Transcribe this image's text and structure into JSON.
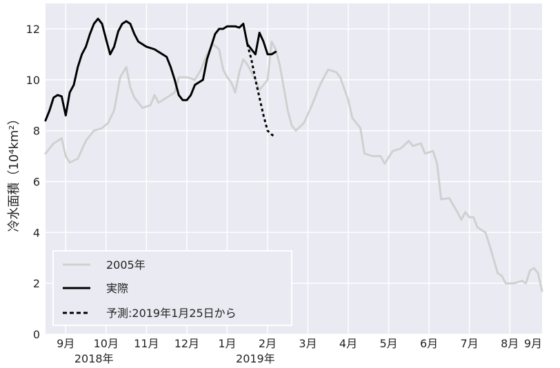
{
  "chart_data": {
    "type": "line",
    "ylabel": "冷水面積（10⁴km²）",
    "ylim": [
      0,
      13
    ],
    "xlim": [
      0,
      12.3
    ],
    "yticks": [
      0,
      2,
      4,
      6,
      8,
      10,
      12
    ],
    "grid": true,
    "legend_position": "bottom-left",
    "months": [
      {
        "label": "9月",
        "x": 0.5
      },
      {
        "label": "10月",
        "x": 1.5
      },
      {
        "label": "11月",
        "x": 2.5
      },
      {
        "label": "12月",
        "x": 3.5
      },
      {
        "label": "1月",
        "x": 4.5
      },
      {
        "label": "2月",
        "x": 5.5
      },
      {
        "label": "3月",
        "x": 6.5
      },
      {
        "label": "4月",
        "x": 7.5
      },
      {
        "label": "5月",
        "x": 8.5
      },
      {
        "label": "6月",
        "x": 9.5
      },
      {
        "label": "7月",
        "x": 10.5
      },
      {
        "label": "8月",
        "x": 11.5
      },
      {
        "label": "9月",
        "x": 12.3
      }
    ],
    "years": [
      {
        "label": "2018年",
        "x": 1.2
      },
      {
        "label": "2019年",
        "x": 5.2
      }
    ],
    "series": [
      {
        "name": "2005年",
        "color": "#d0d0d0",
        "dash": "solid",
        "points": [
          [
            0.0,
            7.1
          ],
          [
            0.2,
            7.5
          ],
          [
            0.4,
            7.7
          ],
          [
            0.5,
            7.0
          ],
          [
            0.6,
            6.75
          ],
          [
            0.8,
            6.9
          ],
          [
            1.0,
            7.6
          ],
          [
            1.2,
            8.0
          ],
          [
            1.4,
            8.1
          ],
          [
            1.55,
            8.3
          ],
          [
            1.7,
            8.8
          ],
          [
            1.85,
            10.1
          ],
          [
            2.0,
            10.5
          ],
          [
            2.1,
            9.7
          ],
          [
            2.2,
            9.3
          ],
          [
            2.4,
            8.9
          ],
          [
            2.6,
            9.0
          ],
          [
            2.7,
            9.4
          ],
          [
            2.8,
            9.1
          ],
          [
            2.9,
            9.2
          ],
          [
            3.0,
            9.3
          ],
          [
            3.2,
            9.5
          ],
          [
            3.3,
            10.1
          ],
          [
            3.5,
            10.1
          ],
          [
            3.7,
            10.0
          ],
          [
            3.85,
            10.4
          ],
          [
            4.0,
            11.0
          ],
          [
            4.15,
            11.4
          ],
          [
            4.3,
            11.2
          ],
          [
            4.4,
            10.4
          ],
          [
            4.5,
            10.1
          ],
          [
            4.6,
            9.9
          ],
          [
            4.7,
            9.5
          ],
          [
            4.8,
            10.3
          ],
          [
            4.9,
            10.8
          ],
          [
            5.0,
            10.6
          ],
          [
            5.2,
            10.0
          ],
          [
            5.3,
            9.6
          ],
          [
            5.5,
            10.0
          ],
          [
            5.6,
            11.5
          ],
          [
            5.7,
            11.2
          ],
          [
            5.8,
            10.6
          ],
          [
            5.9,
            9.7
          ],
          [
            6.0,
            8.8
          ],
          [
            6.1,
            8.2
          ],
          [
            6.2,
            8.0
          ],
          [
            6.4,
            8.3
          ],
          [
            6.6,
            9.0
          ],
          [
            6.8,
            9.8
          ],
          [
            7.0,
            10.4
          ],
          [
            7.2,
            10.3
          ],
          [
            7.3,
            10.1
          ],
          [
            7.5,
            9.2
          ],
          [
            7.6,
            8.5
          ],
          [
            7.8,
            8.1
          ],
          [
            7.9,
            7.1
          ],
          [
            8.1,
            7.0
          ],
          [
            8.3,
            7.0
          ],
          [
            8.4,
            6.7
          ],
          [
            8.6,
            7.2
          ],
          [
            8.8,
            7.3
          ],
          [
            9.0,
            7.6
          ],
          [
            9.1,
            7.4
          ],
          [
            9.3,
            7.5
          ],
          [
            9.4,
            7.1
          ],
          [
            9.6,
            7.2
          ],
          [
            9.7,
            6.7
          ],
          [
            9.8,
            5.3
          ],
          [
            10.0,
            5.35
          ],
          [
            10.2,
            4.8
          ],
          [
            10.3,
            4.5
          ],
          [
            10.4,
            4.8
          ],
          [
            10.5,
            4.6
          ],
          [
            10.6,
            4.6
          ],
          [
            10.7,
            4.2
          ],
          [
            10.9,
            4.0
          ],
          [
            11.0,
            3.5
          ],
          [
            11.2,
            2.4
          ],
          [
            11.3,
            2.3
          ],
          [
            11.4,
            2.0
          ],
          [
            11.5,
            2.0
          ],
          [
            11.6,
            2.0
          ],
          [
            11.8,
            2.1
          ],
          [
            11.9,
            2.0
          ],
          [
            12.0,
            2.5
          ],
          [
            12.1,
            2.6
          ],
          [
            12.2,
            2.4
          ],
          [
            12.3,
            1.7
          ]
        ]
      },
      {
        "name": "実際",
        "color": "#000000",
        "dash": "solid",
        "points": [
          [
            0.0,
            8.4
          ],
          [
            0.1,
            8.8
          ],
          [
            0.2,
            9.3
          ],
          [
            0.3,
            9.4
          ],
          [
            0.4,
            9.35
          ],
          [
            0.5,
            8.6
          ],
          [
            0.6,
            9.5
          ],
          [
            0.7,
            9.8
          ],
          [
            0.8,
            10.5
          ],
          [
            0.9,
            11.0
          ],
          [
            1.0,
            11.3
          ],
          [
            1.1,
            11.8
          ],
          [
            1.2,
            12.2
          ],
          [
            1.3,
            12.4
          ],
          [
            1.4,
            12.2
          ],
          [
            1.5,
            11.6
          ],
          [
            1.6,
            11.0
          ],
          [
            1.7,
            11.3
          ],
          [
            1.8,
            11.9
          ],
          [
            1.9,
            12.2
          ],
          [
            2.0,
            12.3
          ],
          [
            2.1,
            12.2
          ],
          [
            2.2,
            11.8
          ],
          [
            2.3,
            11.5
          ],
          [
            2.5,
            11.3
          ],
          [
            2.7,
            11.2
          ],
          [
            2.8,
            11.1
          ],
          [
            3.0,
            10.9
          ],
          [
            3.1,
            10.5
          ],
          [
            3.2,
            10.0
          ],
          [
            3.3,
            9.4
          ],
          [
            3.4,
            9.2
          ],
          [
            3.5,
            9.2
          ],
          [
            3.6,
            9.4
          ],
          [
            3.7,
            9.8
          ],
          [
            3.8,
            9.9
          ],
          [
            3.9,
            10.0
          ],
          [
            4.0,
            10.8
          ],
          [
            4.1,
            11.3
          ],
          [
            4.2,
            11.8
          ],
          [
            4.3,
            12.0
          ],
          [
            4.4,
            12.0
          ],
          [
            4.5,
            12.1
          ],
          [
            4.6,
            12.1
          ],
          [
            4.7,
            12.1
          ],
          [
            4.8,
            12.05
          ],
          [
            4.9,
            12.2
          ],
          [
            5.0,
            11.4
          ],
          [
            5.1,
            11.2
          ],
          [
            5.2,
            11.0
          ],
          [
            5.3,
            11.85
          ],
          [
            5.4,
            11.5
          ],
          [
            5.5,
            11.0
          ],
          [
            5.6,
            11.0
          ],
          [
            5.7,
            11.1
          ]
        ]
      },
      {
        "name": "予測:2019年1月25日から",
        "color": "#000000",
        "dash": "dashed",
        "points": [
          [
            5.0,
            11.4
          ],
          [
            5.1,
            10.8
          ],
          [
            5.2,
            10.0
          ],
          [
            5.3,
            9.3
          ],
          [
            5.4,
            8.6
          ],
          [
            5.5,
            8.0
          ],
          [
            5.6,
            7.85
          ],
          [
            5.65,
            7.8
          ]
        ]
      }
    ]
  }
}
